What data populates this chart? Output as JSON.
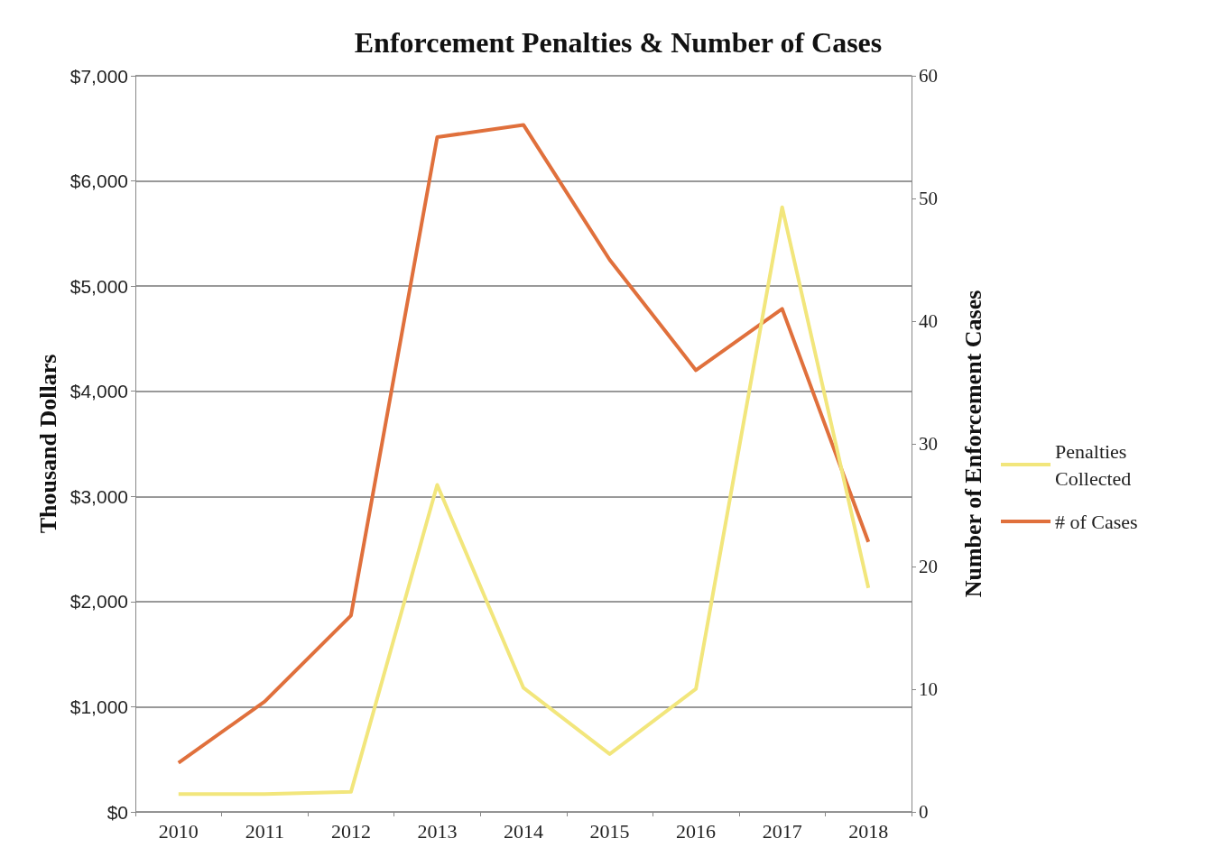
{
  "chart_data": {
    "type": "line",
    "title": "Enforcement Penalties & Number of Cases",
    "ylabel": "Thousand Dollars",
    "y2label": "Number of Enforcement Cases",
    "categories": [
      "2010",
      "2011",
      "2012",
      "2013",
      "2014",
      "2015",
      "2016",
      "2017",
      "2018"
    ],
    "series": [
      {
        "name": "Penalties Collected",
        "color": "#f2e67c",
        "values": [
          170,
          170,
          190,
          3110,
          1180,
          550,
          1170,
          5750,
          2130
        ]
      },
      {
        "name": "# of Cases",
        "color": "#e0703c",
        "axis": "y2",
        "values": [
          4,
          9,
          16,
          55,
          56,
          45,
          36,
          41,
          22
        ]
      }
    ],
    "ylim": [
      0,
      7000
    ],
    "yticks": [
      {
        "value": 0,
        "label": "$0"
      },
      {
        "value": 1000,
        "label": "$1,000"
      },
      {
        "value": 2000,
        "label": "$2,000"
      },
      {
        "value": 3000,
        "label": "$3,000"
      },
      {
        "value": 4000,
        "label": "$4,000"
      },
      {
        "value": 5000,
        "label": "$5,000"
      },
      {
        "value": 6000,
        "label": "$6,000"
      },
      {
        "value": 7000,
        "label": "$7,000"
      }
    ],
    "y2lim": [
      0,
      60
    ],
    "y2ticks": [
      0,
      10,
      20,
      30,
      40,
      50,
      60
    ],
    "grid": "y",
    "legend": "right",
    "marker": "none"
  }
}
